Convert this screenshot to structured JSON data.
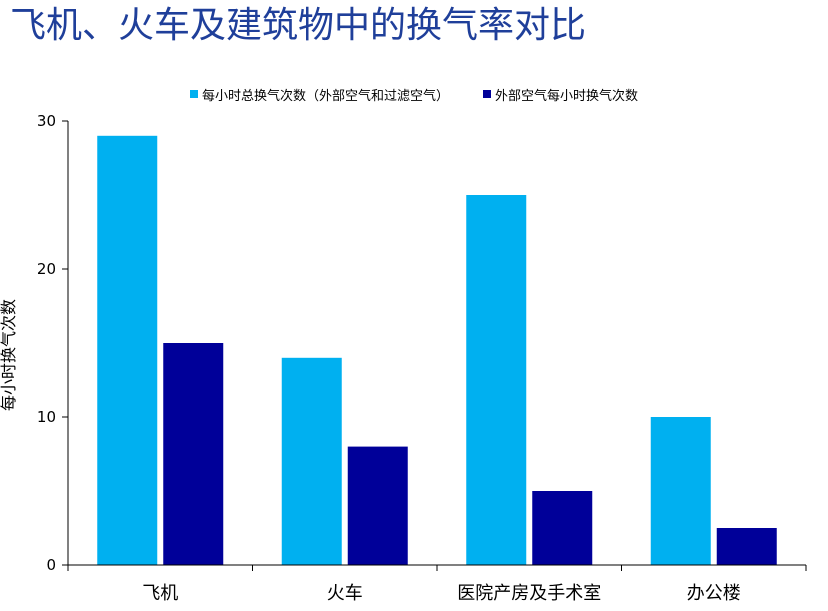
{
  "chart_data": {
    "type": "bar",
    "title": "飞机、火车及建筑物中的换气率对比",
    "categories": [
      "飞机",
      "火车",
      "医院产房及手术室",
      "办公楼"
    ],
    "series": [
      {
        "name": "每小时总换气次数（外部空气和过滤空气）",
        "values": [
          29,
          14,
          25,
          10
        ],
        "color": "#00b0f0"
      },
      {
        "name": "外部空气每小时换气次数",
        "values": [
          15,
          8,
          5,
          2.5
        ],
        "color": "#000099"
      }
    ],
    "xlabel": "",
    "ylabel": "每小时换气次数",
    "ylim": [
      0,
      30
    ],
    "yticks": [
      0,
      10,
      20,
      30
    ],
    "grid": false,
    "legend_position": "top"
  }
}
